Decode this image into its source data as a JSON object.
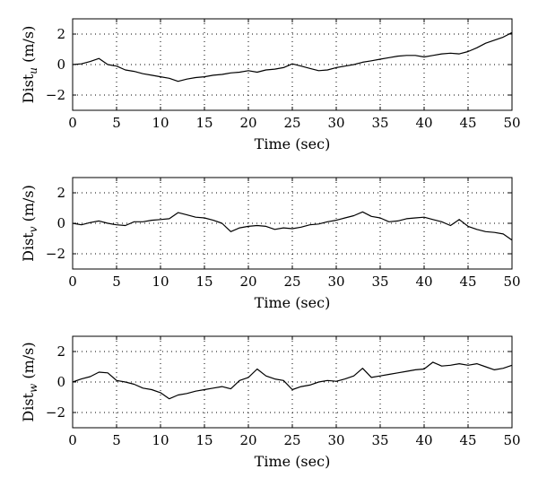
{
  "chart_data": [
    {
      "type": "line",
      "ylabel": {
        "base": "Dist",
        "sub": "u",
        "unit": "(m/s)"
      },
      "xlabel": "Time (sec)",
      "xlim": [
        0,
        50
      ],
      "ylim": [
        -3,
        3
      ],
      "xticks": [
        0,
        5,
        10,
        15,
        20,
        25,
        30,
        35,
        40,
        45,
        50
      ],
      "yticks": [
        -2,
        0,
        2
      ],
      "grid": true,
      "series": [
        {
          "x": [
            0,
            1,
            2,
            3,
            4,
            5,
            6,
            7,
            8,
            9,
            10,
            11,
            12,
            13,
            14,
            15,
            16,
            17,
            18,
            19,
            20,
            21,
            22,
            23,
            24,
            25,
            26,
            27,
            28,
            29,
            30,
            31,
            32,
            33,
            34,
            35,
            36,
            37,
            38,
            39,
            40,
            41,
            42,
            43,
            44,
            45,
            46,
            47,
            48,
            49,
            50
          ],
          "values": [
            0.0,
            0.05,
            0.2,
            0.4,
            0.0,
            -0.1,
            -0.35,
            -0.45,
            -0.6,
            -0.7,
            -0.8,
            -0.9,
            -1.1,
            -0.95,
            -0.85,
            -0.8,
            -0.7,
            -0.65,
            -0.55,
            -0.5,
            -0.4,
            -0.5,
            -0.35,
            -0.3,
            -0.2,
            0.05,
            -0.1,
            -0.25,
            -0.4,
            -0.35,
            -0.2,
            -0.1,
            0.0,
            0.15,
            0.25,
            0.35,
            0.45,
            0.55,
            0.6,
            0.6,
            0.5,
            0.6,
            0.7,
            0.75,
            0.7,
            0.85,
            1.1,
            1.4,
            1.6,
            1.8,
            2.1
          ]
        }
      ]
    },
    {
      "type": "line",
      "ylabel": {
        "base": "Dist",
        "sub": "v",
        "unit": "(m/s)"
      },
      "xlabel": "Time (sec)",
      "xlim": [
        0,
        50
      ],
      "ylim": [
        -3,
        3
      ],
      "xticks": [
        0,
        5,
        10,
        15,
        20,
        25,
        30,
        35,
        40,
        45,
        50
      ],
      "yticks": [
        -2,
        0,
        2
      ],
      "grid": true,
      "series": [
        {
          "x": [
            0,
            1,
            2,
            3,
            4,
            5,
            6,
            7,
            8,
            9,
            10,
            11,
            12,
            13,
            14,
            15,
            16,
            17,
            18,
            19,
            20,
            21,
            22,
            23,
            24,
            25,
            26,
            27,
            28,
            29,
            30,
            31,
            32,
            33,
            34,
            35,
            36,
            37,
            38,
            39,
            40,
            41,
            42,
            43,
            44,
            45,
            46,
            47,
            48,
            49,
            50
          ],
          "values": [
            0.0,
            -0.1,
            0.05,
            0.15,
            0.0,
            -0.1,
            -0.15,
            0.1,
            0.1,
            0.2,
            0.25,
            0.3,
            0.7,
            0.55,
            0.4,
            0.35,
            0.2,
            0.0,
            -0.55,
            -0.3,
            -0.2,
            -0.15,
            -0.2,
            -0.4,
            -0.3,
            -0.35,
            -0.25,
            -0.1,
            -0.05,
            0.1,
            0.2,
            0.35,
            0.5,
            0.75,
            0.45,
            0.35,
            0.1,
            0.15,
            0.3,
            0.35,
            0.4,
            0.25,
            0.1,
            -0.15,
            0.25,
            -0.2,
            -0.4,
            -0.55,
            -0.6,
            -0.7,
            -1.1
          ]
        }
      ]
    },
    {
      "type": "line",
      "ylabel": {
        "base": "Dist",
        "sub": "w",
        "unit": "(m/s)"
      },
      "xlabel": "Time (sec)",
      "xlim": [
        0,
        50
      ],
      "ylim": [
        -3,
        3
      ],
      "xticks": [
        0,
        5,
        10,
        15,
        20,
        25,
        30,
        35,
        40,
        45,
        50
      ],
      "yticks": [
        -2,
        0,
        2
      ],
      "grid": true,
      "series": [
        {
          "x": [
            0,
            1,
            2,
            3,
            4,
            5,
            6,
            7,
            8,
            9,
            10,
            11,
            12,
            13,
            14,
            15,
            16,
            17,
            18,
            19,
            20,
            21,
            22,
            23,
            24,
            25,
            26,
            27,
            28,
            29,
            30,
            31,
            32,
            33,
            34,
            35,
            36,
            37,
            38,
            39,
            40,
            41,
            42,
            43,
            44,
            45,
            46,
            47,
            48,
            49,
            50
          ],
          "values": [
            0.0,
            0.2,
            0.35,
            0.65,
            0.6,
            0.1,
            0.0,
            -0.15,
            -0.4,
            -0.5,
            -0.7,
            -1.1,
            -0.85,
            -0.75,
            -0.6,
            -0.5,
            -0.4,
            -0.3,
            -0.45,
            0.1,
            0.3,
            0.85,
            0.4,
            0.2,
            0.1,
            -0.5,
            -0.3,
            -0.2,
            0.0,
            0.1,
            0.05,
            0.2,
            0.4,
            0.9,
            0.3,
            0.4,
            0.5,
            0.6,
            0.7,
            0.8,
            0.85,
            1.3,
            1.05,
            1.1,
            1.2,
            1.1,
            1.2,
            1.0,
            0.8,
            0.9,
            1.1
          ]
        }
      ]
    }
  ]
}
